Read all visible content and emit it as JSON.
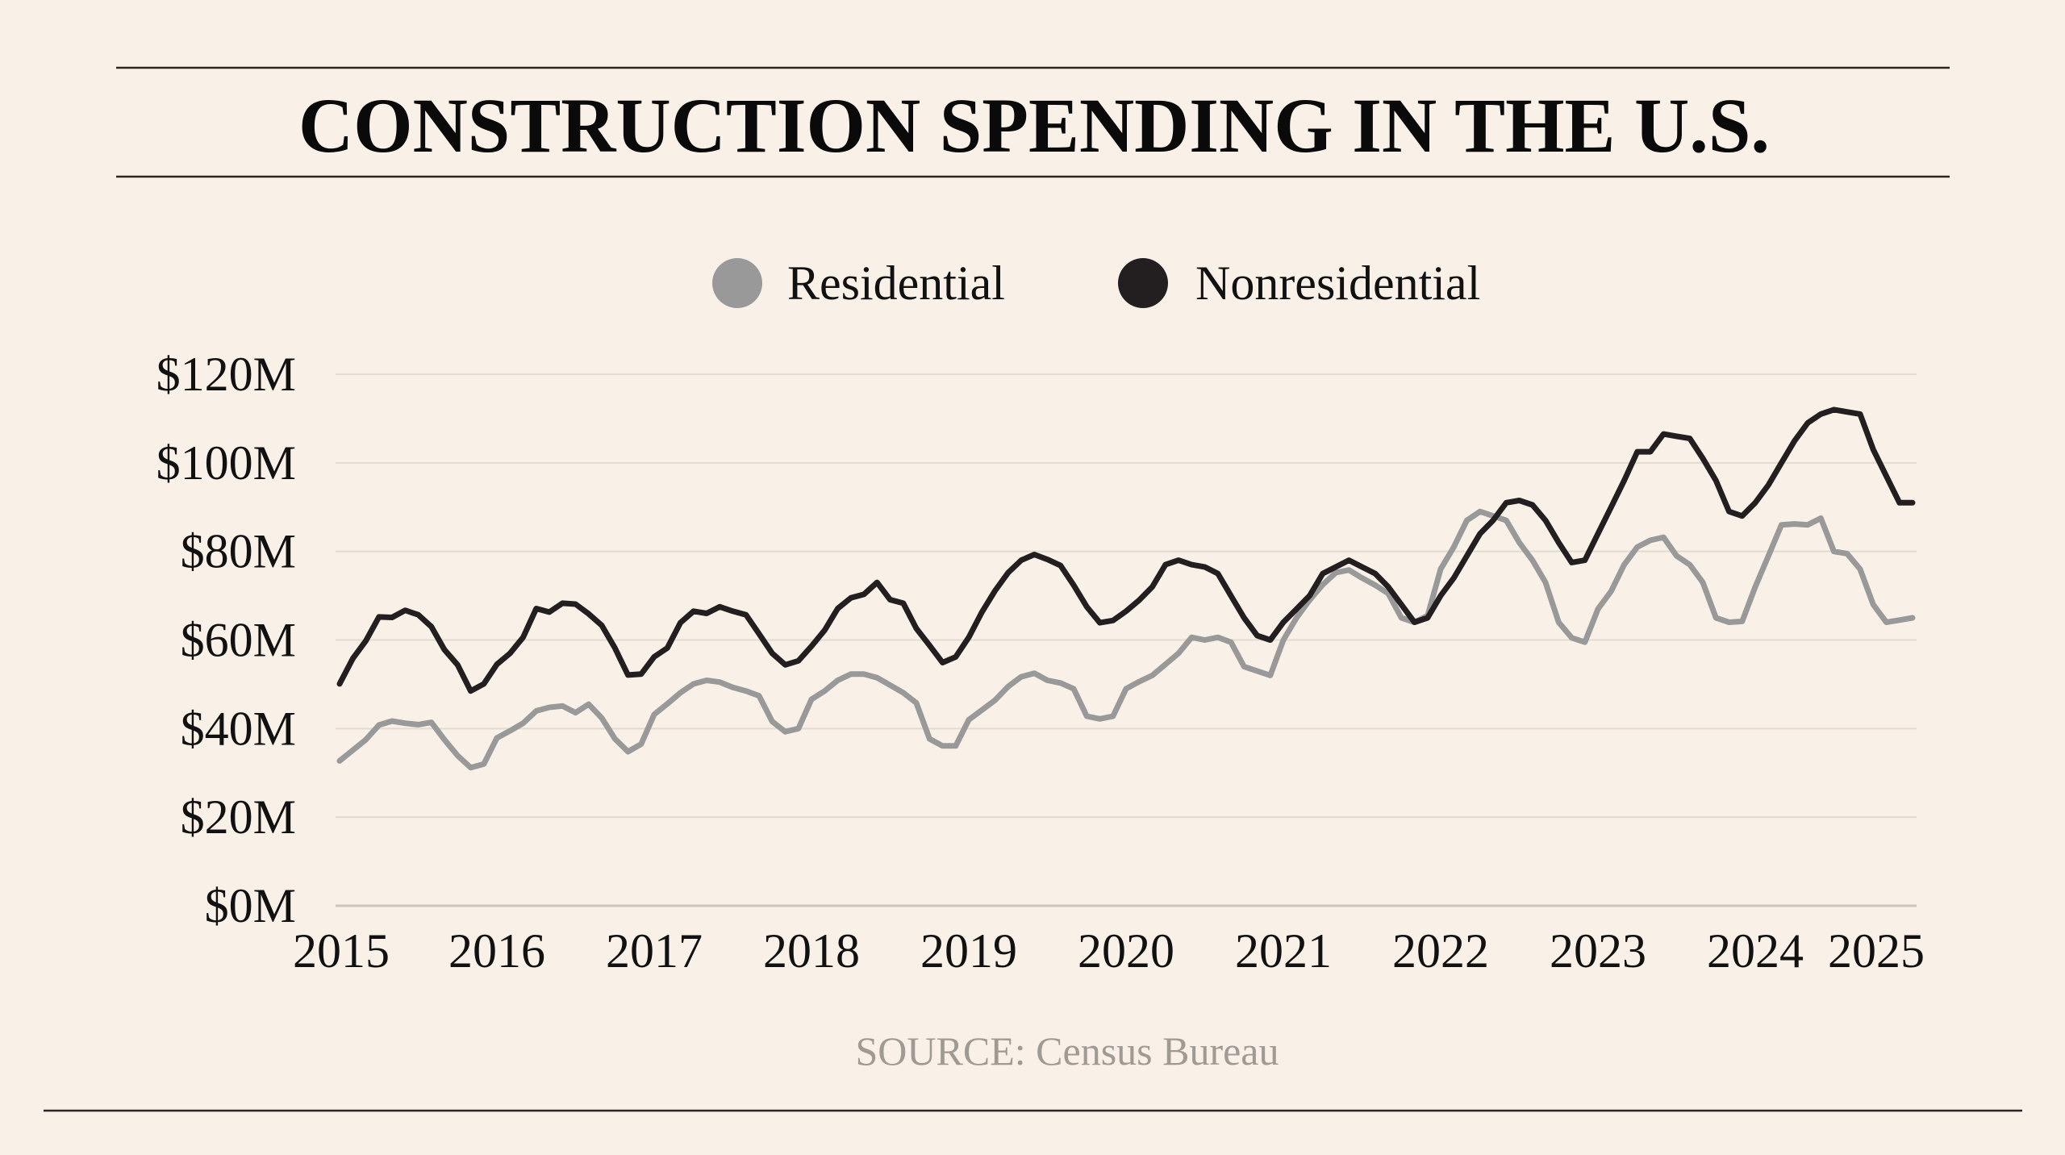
{
  "chart_data": {
    "type": "line",
    "title": "CONSTRUCTION SPENDING IN THE U.S.",
    "source": "SOURCE: Census Bureau",
    "xlabel": "",
    "ylabel": "",
    "x_start": "2015-01",
    "x_frequency": "monthly",
    "x_tick_labels": [
      "2015",
      "2016",
      "2017",
      "2018",
      "2019",
      "2020",
      "2021",
      "2022",
      "2023",
      "2024",
      "2025"
    ],
    "y_tick_labels": [
      "$0M",
      "$20M",
      "$40M",
      "$60M",
      "$80M",
      "$100M",
      "$120M"
    ],
    "y_ticks": [
      0,
      20,
      40,
      60,
      80,
      100,
      120
    ],
    "ylim": [
      0,
      120
    ],
    "grid": true,
    "legend_position": "top-center",
    "colors": {
      "background": "#f9f1e7",
      "grid": "#e2dbd2",
      "source_text": "#a09a94"
    },
    "series": [
      {
        "name": "Residential",
        "color": "#999999",
        "values": [
          32.7,
          35.1,
          37.5,
          40.8,
          41.7,
          41.2,
          40.9,
          41.4,
          37.5,
          33.9,
          31.2,
          32.0,
          37.9,
          39.5,
          41.2,
          44.0,
          44.8,
          45.1,
          43.6,
          45.5,
          42.4,
          37.7,
          34.8,
          36.5,
          43.2,
          45.6,
          48.1,
          50.1,
          50.9,
          50.5,
          49.3,
          48.5,
          47.4,
          41.6,
          39.3,
          40.0,
          46.6,
          48.5,
          50.9,
          52.3,
          52.3,
          51.5,
          49.8,
          48.1,
          45.8,
          37.7,
          36.1,
          36.1,
          42.0,
          44.2,
          46.4,
          49.5,
          51.7,
          52.5,
          50.9,
          50.3,
          49.0,
          42.8,
          42.2,
          42.8,
          49.0,
          50.6,
          52.0,
          54.5,
          57.0,
          60.6,
          60.0,
          60.6,
          59.5,
          54.0,
          53.0,
          52.0,
          60.0,
          65.0,
          69.0,
          72.5,
          75.2,
          75.8,
          74.0,
          72.4,
          70.5,
          65.0,
          64.0,
          65.5,
          76.0,
          81.0,
          87.0,
          89.0,
          88.0,
          87.0,
          82.0,
          78.0,
          73.0,
          64.0,
          60.5,
          59.5,
          67.0,
          71.0,
          77.0,
          81.0,
          82.5,
          83.2,
          79.0,
          77.0,
          73.0,
          65.0,
          64.0,
          64.2,
          72.0,
          79.0,
          86.0,
          86.2,
          86.0,
          87.5,
          80.0,
          79.5,
          76.0,
          68.0,
          64.0,
          64.5,
          65.0
        ]
      },
      {
        "name": "Nonresidential",
        "color": "#231f20",
        "values": [
          50.1,
          55.8,
          59.8,
          65.2,
          65.1,
          66.7,
          65.7,
          63.0,
          57.8,
          54.4,
          48.5,
          50.1,
          54.5,
          57.0,
          60.6,
          67.1,
          66.3,
          68.3,
          68.1,
          65.9,
          63.3,
          58.2,
          52.1,
          52.3,
          56.2,
          58.2,
          63.9,
          66.5,
          66.0,
          67.5,
          66.5,
          65.7,
          61.4,
          57.0,
          54.4,
          55.3,
          58.6,
          62.2,
          67.1,
          69.5,
          70.3,
          73.0,
          69.1,
          68.3,
          62.6,
          58.8,
          54.9,
          56.2,
          60.6,
          66.3,
          71.1,
          75.2,
          78.0,
          79.3,
          78.2,
          76.8,
          72.4,
          67.5,
          63.9,
          64.4,
          66.5,
          69.0,
          72.0,
          77.0,
          78.0,
          77.0,
          76.5,
          75.0,
          70.0,
          65.0,
          61.0,
          60.0,
          64.0,
          67.0,
          70.0,
          75.0,
          76.5,
          78.0,
          76.5,
          75.0,
          72.0,
          68.0,
          64.0,
          65.0,
          70.0,
          74.0,
          79.0,
          84.0,
          87.0,
          91.0,
          91.5,
          90.5,
          87.0,
          82.0,
          77.5,
          78.0,
          84.0,
          90.0,
          96.0,
          102.5,
          102.5,
          106.5,
          106.0,
          105.5,
          101.0,
          96.0,
          89.0,
          88.0,
          91.0,
          95.0,
          100.0,
          105.0,
          109.0,
          111.0,
          112.0,
          111.5,
          111.0,
          103.0,
          97.0,
          91.0,
          91.0
        ]
      }
    ]
  }
}
